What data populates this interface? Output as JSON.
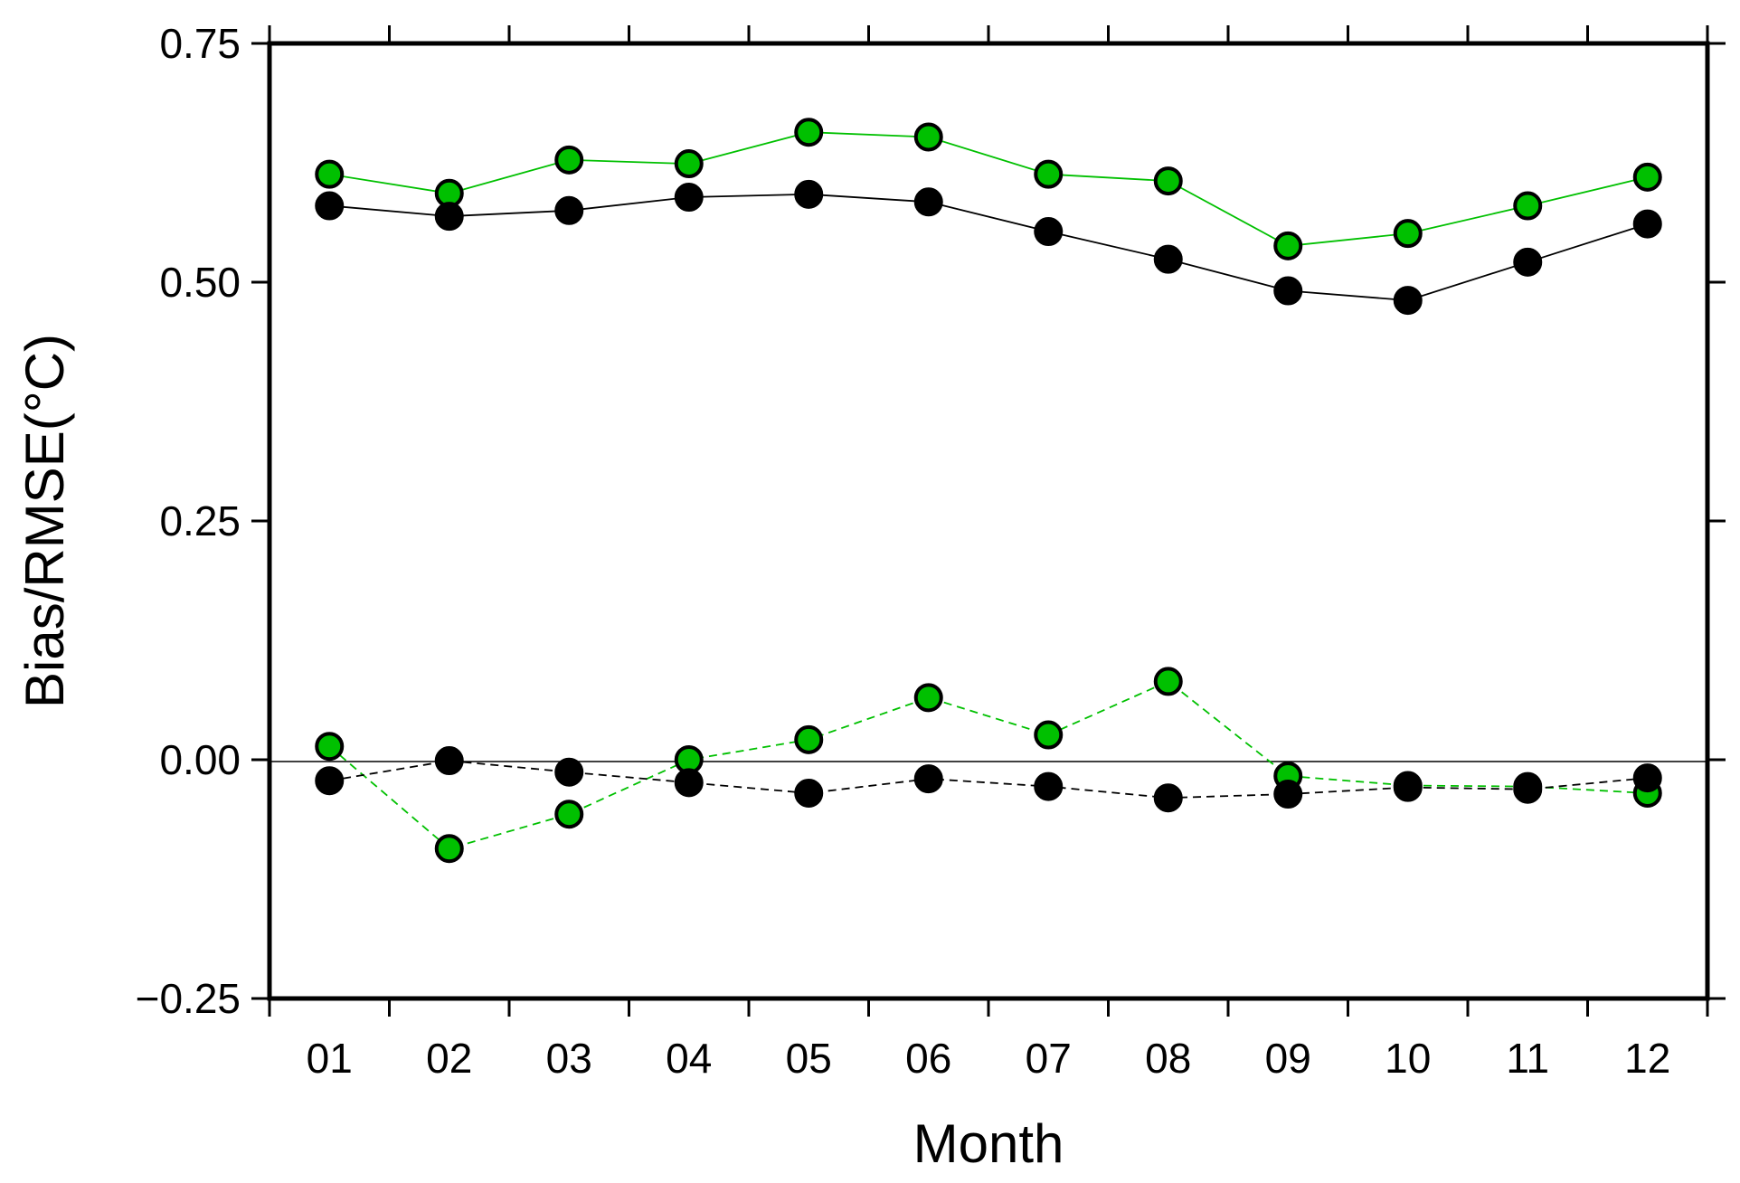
{
  "chart_data": {
    "type": "line",
    "xlabel": "Month",
    "ylabel": "Bias/RMSE(°C)",
    "categories": [
      "01",
      "02",
      "03",
      "04",
      "05",
      "06",
      "07",
      "08",
      "09",
      "10",
      "11",
      "12"
    ],
    "ylim": [
      -0.25,
      0.75
    ],
    "yticks": [
      "0.75",
      "0.50",
      "0.25",
      "0.00",
      "−0.25"
    ],
    "ytick_values": [
      0.75,
      0.5,
      0.25,
      0.0,
      -0.25
    ],
    "grid": false,
    "zero_line": true,
    "series": [
      {
        "metric": "RMSE",
        "color": "#00c000",
        "line_style": "solid",
        "values": [
          0.613,
          0.593,
          0.628,
          0.624,
          0.657,
          0.652,
          0.613,
          0.606,
          0.538,
          0.551,
          0.58,
          0.61
        ]
      },
      {
        "metric": "RMSE",
        "color": "#000000",
        "line_style": "solid",
        "values": [
          0.58,
          0.569,
          0.575,
          0.589,
          0.592,
          0.584,
          0.553,
          0.524,
          0.491,
          0.481,
          0.521,
          0.561
        ]
      },
      {
        "metric": "Bias",
        "color": "#00c000",
        "line_style": "dashed",
        "values": [
          0.014,
          -0.093,
          -0.057,
          0.0,
          0.021,
          0.065,
          0.026,
          0.082,
          -0.017,
          -0.027,
          -0.028,
          -0.035
        ]
      },
      {
        "metric": "Bias",
        "color": "#000000",
        "line_style": "dashed",
        "values": [
          -0.022,
          -0.001,
          -0.013,
          -0.024,
          -0.035,
          -0.02,
          -0.028,
          -0.04,
          -0.036,
          -0.029,
          -0.031,
          -0.019
        ]
      }
    ]
  }
}
